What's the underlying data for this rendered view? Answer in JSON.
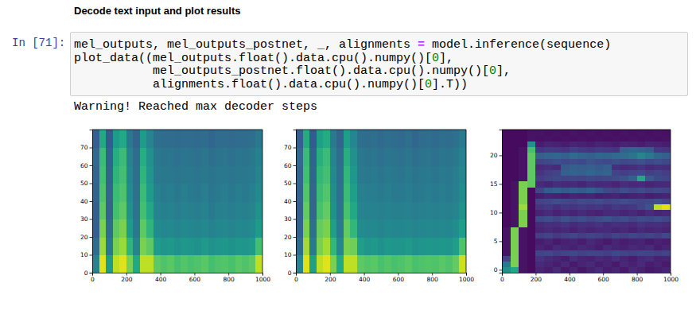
{
  "heading": "Decode text input and plot results",
  "cell": {
    "prompt": "In [71]:",
    "code": [
      "mel_outputs, mel_outputs_postnet, _, alignments = model.inference(sequence)",
      "plot_data((mel_outputs.float().data.cpu().numpy()[0],",
      "           mel_outputs_postnet.float().data.cpu().numpy()[0],",
      "           alignments.float().data.cpu().numpy()[0].T))"
    ]
  },
  "output": {
    "warning": "Warning! Reached max decoder steps"
  },
  "chart_data": [
    {
      "type": "heatmap",
      "color": "viridis",
      "zlim": [
        0,
        1
      ],
      "xlim": [
        0,
        1000
      ],
      "xticks": [
        0,
        200,
        400,
        600,
        800,
        1000
      ],
      "ylim": [
        0,
        80
      ],
      "yticks": [
        0,
        10,
        20,
        30,
        40,
        50,
        60,
        70
      ],
      "x_bins": [
        0,
        40,
        80,
        120,
        160,
        200,
        240,
        280,
        320,
        360,
        400,
        440,
        480,
        520,
        560,
        600,
        640,
        680,
        720,
        760,
        800,
        840,
        880,
        920,
        960,
        1000
      ],
      "y_bins": [
        0,
        10,
        20,
        30,
        40,
        50,
        60,
        70,
        80
      ],
      "cells": [
        [
          0.45,
          0.95,
          0.55,
          0.9,
          0.95,
          0.8,
          0.6,
          0.9,
          0.9,
          0.75,
          0.72,
          0.74,
          0.7,
          0.73,
          0.71,
          0.72,
          0.74,
          0.7,
          0.72,
          0.73,
          0.71,
          0.74,
          0.72,
          0.75,
          0.9
        ],
        [
          0.35,
          0.85,
          0.4,
          0.8,
          0.85,
          0.65,
          0.45,
          0.8,
          0.75,
          0.55,
          0.52,
          0.54,
          0.5,
          0.53,
          0.52,
          0.51,
          0.54,
          0.5,
          0.52,
          0.53,
          0.51,
          0.53,
          0.52,
          0.55,
          0.7
        ],
        [
          0.3,
          0.8,
          0.35,
          0.75,
          0.8,
          0.55,
          0.4,
          0.75,
          0.65,
          0.48,
          0.46,
          0.47,
          0.45,
          0.47,
          0.46,
          0.45,
          0.47,
          0.44,
          0.46,
          0.47,
          0.45,
          0.47,
          0.46,
          0.48,
          0.55
        ],
        [
          0.3,
          0.75,
          0.32,
          0.7,
          0.75,
          0.5,
          0.38,
          0.7,
          0.6,
          0.45,
          0.43,
          0.44,
          0.42,
          0.44,
          0.43,
          0.42,
          0.44,
          0.41,
          0.43,
          0.44,
          0.42,
          0.44,
          0.43,
          0.45,
          0.5
        ],
        [
          0.32,
          0.72,
          0.33,
          0.68,
          0.72,
          0.48,
          0.37,
          0.68,
          0.55,
          0.43,
          0.41,
          0.42,
          0.4,
          0.42,
          0.41,
          0.4,
          0.42,
          0.39,
          0.41,
          0.42,
          0.4,
          0.42,
          0.41,
          0.43,
          0.47
        ],
        [
          0.33,
          0.7,
          0.32,
          0.65,
          0.7,
          0.46,
          0.36,
          0.65,
          0.52,
          0.41,
          0.4,
          0.4,
          0.39,
          0.4,
          0.4,
          0.39,
          0.4,
          0.38,
          0.4,
          0.4,
          0.39,
          0.4,
          0.4,
          0.41,
          0.45
        ],
        [
          0.34,
          0.68,
          0.31,
          0.62,
          0.68,
          0.44,
          0.35,
          0.62,
          0.5,
          0.4,
          0.38,
          0.39,
          0.37,
          0.39,
          0.38,
          0.37,
          0.39,
          0.36,
          0.38,
          0.39,
          0.37,
          0.39,
          0.38,
          0.4,
          0.43
        ],
        [
          0.3,
          0.6,
          0.28,
          0.55,
          0.6,
          0.4,
          0.32,
          0.55,
          0.45,
          0.36,
          0.35,
          0.35,
          0.34,
          0.35,
          0.35,
          0.34,
          0.35,
          0.33,
          0.35,
          0.35,
          0.34,
          0.35,
          0.35,
          0.36,
          0.4
        ]
      ]
    },
    {
      "type": "heatmap",
      "color": "viridis",
      "zlim": [
        0,
        1
      ],
      "xlim": [
        0,
        1000
      ],
      "xticks": [
        0,
        200,
        400,
        600,
        800,
        1000
      ],
      "ylim": [
        0,
        80
      ],
      "yticks": [
        0,
        10,
        20,
        30,
        40,
        50,
        60,
        70
      ],
      "x_bins": [
        0,
        40,
        80,
        120,
        160,
        200,
        240,
        280,
        320,
        360,
        400,
        440,
        480,
        520,
        560,
        600,
        640,
        680,
        720,
        760,
        800,
        840,
        880,
        920,
        960,
        1000
      ],
      "y_bins": [
        0,
        10,
        20,
        30,
        40,
        50,
        60,
        70,
        80
      ],
      "cells": [
        [
          0.46,
          0.95,
          0.56,
          0.9,
          0.95,
          0.8,
          0.6,
          0.9,
          0.9,
          0.75,
          0.73,
          0.74,
          0.71,
          0.73,
          0.71,
          0.72,
          0.74,
          0.71,
          0.72,
          0.73,
          0.72,
          0.74,
          0.72,
          0.76,
          0.92
        ],
        [
          0.35,
          0.86,
          0.41,
          0.8,
          0.86,
          0.66,
          0.46,
          0.8,
          0.78,
          0.56,
          0.52,
          0.54,
          0.51,
          0.53,
          0.52,
          0.52,
          0.54,
          0.5,
          0.52,
          0.53,
          0.52,
          0.53,
          0.52,
          0.56,
          0.72
        ],
        [
          0.31,
          0.8,
          0.36,
          0.76,
          0.8,
          0.56,
          0.41,
          0.76,
          0.66,
          0.48,
          0.47,
          0.47,
          0.45,
          0.47,
          0.46,
          0.46,
          0.47,
          0.45,
          0.46,
          0.47,
          0.46,
          0.47,
          0.46,
          0.49,
          0.56
        ],
        [
          0.3,
          0.76,
          0.33,
          0.71,
          0.76,
          0.51,
          0.38,
          0.71,
          0.6,
          0.45,
          0.44,
          0.44,
          0.43,
          0.44,
          0.43,
          0.43,
          0.44,
          0.42,
          0.43,
          0.44,
          0.43,
          0.44,
          0.43,
          0.45,
          0.51
        ],
        [
          0.32,
          0.73,
          0.33,
          0.68,
          0.73,
          0.49,
          0.37,
          0.68,
          0.56,
          0.43,
          0.42,
          0.42,
          0.41,
          0.42,
          0.41,
          0.41,
          0.42,
          0.4,
          0.41,
          0.42,
          0.41,
          0.42,
          0.41,
          0.43,
          0.48
        ],
        [
          0.33,
          0.7,
          0.32,
          0.66,
          0.7,
          0.47,
          0.36,
          0.66,
          0.53,
          0.41,
          0.4,
          0.41,
          0.39,
          0.41,
          0.4,
          0.39,
          0.41,
          0.38,
          0.4,
          0.41,
          0.39,
          0.41,
          0.4,
          0.42,
          0.46
        ],
        [
          0.34,
          0.68,
          0.31,
          0.63,
          0.68,
          0.45,
          0.35,
          0.63,
          0.5,
          0.4,
          0.38,
          0.39,
          0.37,
          0.39,
          0.38,
          0.37,
          0.39,
          0.36,
          0.38,
          0.39,
          0.37,
          0.39,
          0.38,
          0.4,
          0.44
        ],
        [
          0.3,
          0.61,
          0.28,
          0.56,
          0.61,
          0.41,
          0.32,
          0.56,
          0.46,
          0.36,
          0.35,
          0.36,
          0.34,
          0.36,
          0.35,
          0.34,
          0.36,
          0.33,
          0.35,
          0.36,
          0.34,
          0.36,
          0.35,
          0.37,
          0.41
        ]
      ]
    },
    {
      "type": "heatmap",
      "color": "viridis",
      "zlim": [
        0,
        1
      ],
      "xlim": [
        0,
        1000
      ],
      "xticks": [
        0,
        200,
        400,
        600,
        800,
        1000
      ],
      "ylim": [
        -0.5,
        24.5
      ],
      "yticks": [
        0,
        5,
        10,
        15,
        20
      ],
      "x_bins": [
        0,
        50,
        100,
        150,
        200,
        250,
        300,
        350,
        400,
        450,
        500,
        550,
        600,
        650,
        700,
        750,
        800,
        850,
        900,
        950,
        1000
      ],
      "y_bins": [
        -0.5,
        0.5,
        1.5,
        2.5,
        3.5,
        4.5,
        5.5,
        6.5,
        7.5,
        8.5,
        9.5,
        10.5,
        11.5,
        12.5,
        13.5,
        14.5,
        15.5,
        16.5,
        17.5,
        18.5,
        19.5,
        20.5,
        21.5,
        22.5,
        23.5,
        24.5
      ],
      "cells": [
        [
          0.5,
          0.6,
          0.05,
          0.03,
          0.1,
          0.08,
          0.12,
          0.07,
          0.1,
          0.06,
          0.09,
          0.12,
          0.08,
          0.1,
          0.07,
          0.11,
          0.09,
          0.06,
          0.08,
          0.1
        ],
        [
          0.4,
          0.8,
          0.05,
          0.03,
          0.12,
          0.1,
          0.08,
          0.11,
          0.07,
          0.1,
          0.12,
          0.08,
          0.1,
          0.07,
          0.11,
          0.09,
          0.12,
          0.08,
          0.1,
          0.07
        ],
        [
          0.2,
          0.8,
          0.05,
          0.03,
          0.15,
          0.12,
          0.1,
          0.08,
          0.13,
          0.1,
          0.09,
          0.12,
          0.1,
          0.14,
          0.1,
          0.08,
          0.11,
          0.13,
          0.09,
          0.1
        ],
        [
          0.05,
          0.8,
          0.05,
          0.03,
          0.2,
          0.22,
          0.18,
          0.2,
          0.22,
          0.19,
          0.21,
          0.2,
          0.18,
          0.22,
          0.2,
          0.19,
          0.21,
          0.2,
          0.18,
          0.2
        ],
        [
          0.05,
          0.8,
          0.05,
          0.03,
          0.1,
          0.08,
          0.12,
          0.1,
          0.09,
          0.11,
          0.1,
          0.08,
          0.12,
          0.1,
          0.09,
          0.11,
          0.1,
          0.12,
          0.08,
          0.1
        ],
        [
          0.05,
          0.8,
          0.05,
          0.03,
          0.08,
          0.1,
          0.07,
          0.09,
          0.1,
          0.08,
          0.11,
          0.09,
          0.07,
          0.1,
          0.08,
          0.09,
          0.1,
          0.07,
          0.09,
          0.08
        ],
        [
          0.05,
          0.8,
          0.05,
          0.03,
          0.18,
          0.2,
          0.17,
          0.19,
          0.21,
          0.18,
          0.2,
          0.19,
          0.17,
          0.2,
          0.18,
          0.21,
          0.19,
          0.2,
          0.18,
          0.22
        ],
        [
          0.05,
          0.8,
          0.05,
          0.03,
          0.1,
          0.12,
          0.1,
          0.11,
          0.09,
          0.12,
          0.1,
          0.11,
          0.12,
          0.1,
          0.11,
          0.09,
          0.12,
          0.1,
          0.11,
          0.1
        ],
        [
          0.03,
          0.05,
          0.8,
          0.03,
          0.12,
          0.14,
          0.13,
          0.15,
          0.12,
          0.14,
          0.13,
          0.15,
          0.12,
          0.14,
          0.13,
          0.12,
          0.15,
          0.13,
          0.14,
          0.12
        ],
        [
          0.03,
          0.05,
          0.8,
          0.03,
          0.22,
          0.24,
          0.2,
          0.25,
          0.22,
          0.24,
          0.21,
          0.23,
          0.25,
          0.22,
          0.24,
          0.2,
          0.23,
          0.22,
          0.24,
          0.21
        ],
        [
          0.03,
          0.05,
          0.8,
          0.03,
          0.1,
          0.12,
          0.09,
          0.11,
          0.1,
          0.12,
          0.1,
          0.09,
          0.11,
          0.12,
          0.1,
          0.11,
          0.09,
          0.12,
          0.1,
          0.11
        ],
        [
          0.03,
          0.05,
          0.85,
          0.03,
          0.15,
          0.17,
          0.14,
          0.16,
          0.15,
          0.17,
          0.15,
          0.16,
          0.14,
          0.17,
          0.15,
          0.16,
          0.2,
          0.25,
          0.9,
          0.95
        ],
        [
          0.03,
          0.05,
          0.8,
          0.03,
          0.2,
          0.22,
          0.24,
          0.22,
          0.2,
          0.23,
          0.22,
          0.24,
          0.21,
          0.22,
          0.24,
          0.22,
          0.2,
          0.22,
          0.24,
          0.2
        ],
        [
          0.03,
          0.05,
          0.8,
          0.03,
          0.08,
          0.1,
          0.09,
          0.08,
          0.1,
          0.09,
          0.1,
          0.08,
          0.09,
          0.1,
          0.08,
          0.09,
          0.1,
          0.08,
          0.09,
          0.1
        ],
        [
          0.03,
          0.05,
          0.8,
          0.03,
          0.2,
          0.28,
          0.3,
          0.27,
          0.29,
          0.28,
          0.3,
          0.26,
          0.22,
          0.2,
          0.24,
          0.21,
          0.23,
          0.2,
          0.22,
          0.2
        ],
        [
          0.03,
          0.05,
          0.8,
          0.75,
          0.12,
          0.1,
          0.13,
          0.11,
          0.12,
          0.1,
          0.13,
          0.11,
          0.12,
          0.1,
          0.13,
          0.11,
          0.12,
          0.1,
          0.11,
          0.12
        ],
        [
          0.03,
          0.03,
          0.05,
          0.75,
          0.18,
          0.2,
          0.22,
          0.2,
          0.21,
          0.2,
          0.22,
          0.2,
          0.21,
          0.23,
          0.25,
          0.3,
          0.6,
          0.28,
          0.22,
          0.2
        ],
        [
          0.03,
          0.03,
          0.05,
          0.75,
          0.15,
          0.18,
          0.2,
          0.3,
          0.32,
          0.3,
          0.33,
          0.3,
          0.32,
          0.2,
          0.18,
          0.2,
          0.22,
          0.18,
          0.2,
          0.18
        ],
        [
          0.03,
          0.03,
          0.05,
          0.75,
          0.12,
          0.14,
          0.12,
          0.28,
          0.3,
          0.29,
          0.3,
          0.28,
          0.3,
          0.14,
          0.12,
          0.13,
          0.15,
          0.12,
          0.14,
          0.13
        ],
        [
          0.03,
          0.03,
          0.05,
          0.75,
          0.2,
          0.22,
          0.24,
          0.22,
          0.23,
          0.22,
          0.25,
          0.23,
          0.22,
          0.24,
          0.22,
          0.23,
          0.25,
          0.22,
          0.24,
          0.22
        ],
        [
          0.03,
          0.03,
          0.05,
          0.75,
          0.3,
          0.32,
          0.33,
          0.3,
          0.34,
          0.32,
          0.3,
          0.33,
          0.32,
          0.34,
          0.35,
          0.38,
          0.45,
          0.4,
          0.33,
          0.3
        ],
        [
          0.03,
          0.03,
          0.05,
          0.7,
          0.15,
          0.17,
          0.16,
          0.15,
          0.18,
          0.16,
          0.15,
          0.17,
          0.16,
          0.15,
          0.3,
          0.32,
          0.3,
          0.28,
          0.16,
          0.15
        ],
        [
          0.03,
          0.03,
          0.03,
          0.5,
          0.08,
          0.1,
          0.09,
          0.08,
          0.1,
          0.09,
          0.08,
          0.1,
          0.09,
          0.08,
          0.1,
          0.09,
          0.08,
          0.1,
          0.09,
          0.08
        ],
        [
          0.03,
          0.03,
          0.03,
          0.05,
          0.04,
          0.05,
          0.04,
          0.05,
          0.04,
          0.05,
          0.04,
          0.05,
          0.04,
          0.05,
          0.04,
          0.05,
          0.04,
          0.05,
          0.04,
          0.05
        ],
        [
          0.03,
          0.03,
          0.03,
          0.05,
          0.05,
          0.04,
          0.05,
          0.04,
          0.05,
          0.04,
          0.05,
          0.04,
          0.05,
          0.04,
          0.05,
          0.04,
          0.05,
          0.04,
          0.05,
          0.04
        ]
      ]
    }
  ]
}
